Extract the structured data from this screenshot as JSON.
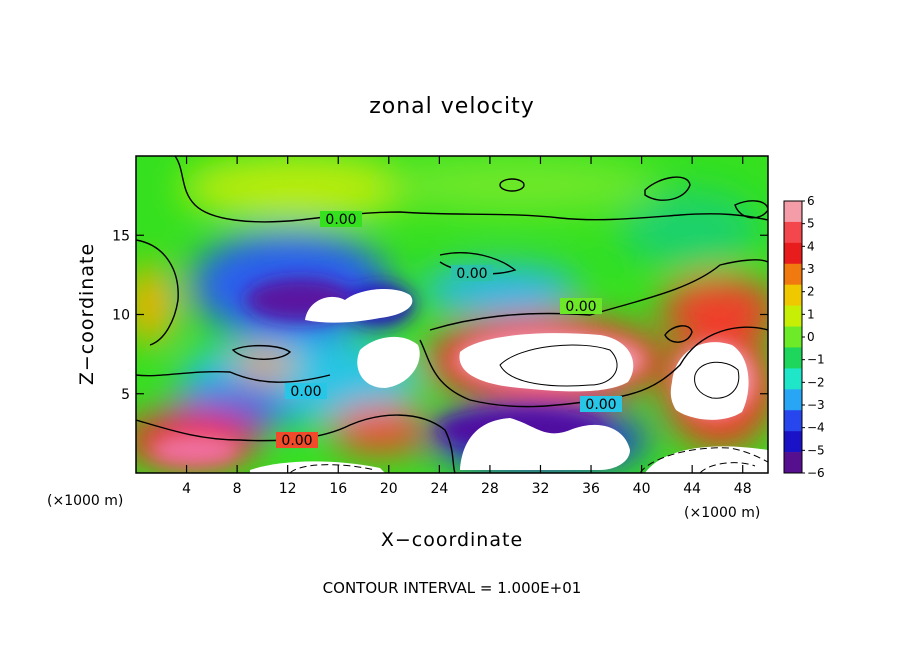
{
  "chart_data": {
    "type": "heatmap",
    "title": "zonal velocity",
    "xlabel": "X−coordinate",
    "ylabel": "Z−coordinate",
    "x_unit_left": "(×1000 m)",
    "x_unit_right": "(×1000 m)",
    "xlim": [
      0,
      50
    ],
    "ylim": [
      0,
      20
    ],
    "xticks": [
      "4",
      "8",
      "12",
      "16",
      "20",
      "24",
      "28",
      "32",
      "36",
      "40",
      "44",
      "48"
    ],
    "xtick_values": [
      4,
      8,
      12,
      16,
      20,
      24,
      28,
      32,
      36,
      40,
      44,
      48
    ],
    "yticks": [
      "5",
      "10",
      "15"
    ],
    "ytick_values": [
      5,
      10,
      15
    ],
    "colorbar": {
      "labels": [
        "6",
        "5",
        "4",
        "3",
        "2",
        "1",
        "0",
        "−1",
        "−2",
        "−3",
        "−4",
        "−5",
        "−6"
      ],
      "min": -6,
      "max": 6,
      "colors": [
        "#f49ca8",
        "#f3464d",
        "#e81c1c",
        "#f17a10",
        "#f0c800",
        "#c7ef05",
        "#6dea28",
        "#1ed65c",
        "#1fe6c8",
        "#28a6f5",
        "#2846ee",
        "#1a12c6",
        "#56108f"
      ]
    },
    "contour_labels": [
      {
        "text": "0.00",
        "x": 16.3,
        "z": 15.8
      },
      {
        "text": "0.00",
        "x": 26.0,
        "z": 12.5
      },
      {
        "text": "0.00",
        "x": 34.7,
        "z": 10.5
      },
      {
        "text": "0.00",
        "x": 12.6,
        "z": 5.0
      },
      {
        "text": "0.00",
        "x": 36.7,
        "z": 4.4
      },
      {
        "text": "0.00",
        "x": 12.7,
        "z": 2.0
      }
    ],
    "note": "CONTOUR INTERVAL = 1.000E+01",
    "features": [
      {
        "x": 14,
        "z": 11.5,
        "value": -6
      },
      {
        "x": 20,
        "z": 10.5,
        "value": -8
      },
      {
        "x": 33,
        "z": 7.0,
        "value": 8
      },
      {
        "x": 45,
        "z": 6.0,
        "value": 8
      },
      {
        "x": 45,
        "z": 10.3,
        "value": 5
      },
      {
        "x": 3,
        "z": 2.5,
        "value": 5
      },
      {
        "x": 34,
        "z": 2.0,
        "value": -8
      },
      {
        "x": 16,
        "z": 17.8,
        "value": 1.5
      },
      {
        "x": 2,
        "z": 9.8,
        "value": 2.5
      }
    ]
  }
}
